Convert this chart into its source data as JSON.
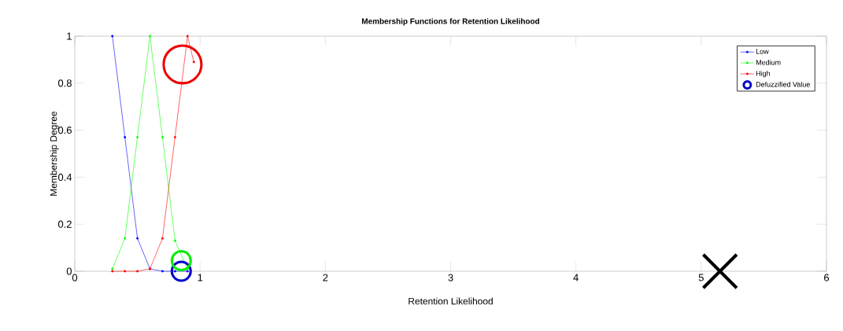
{
  "chart_data": {
    "type": "line",
    "title": "Membership Functions for Retention Likelihood",
    "xlabel": "Retention Likelihood",
    "ylabel": "Membership Degree",
    "series": [
      {
        "name": "Low",
        "color": "#0000ff",
        "marker": "circle",
        "x": [
          0.3,
          0.4,
          0.5,
          0.6,
          0.7,
          0.8,
          0.9
        ],
        "values": [
          1,
          0.57,
          0.14,
          0.01,
          0,
          0,
          0
        ]
      },
      {
        "name": "Medium",
        "color": "#00ff00",
        "marker": "circle",
        "x": [
          0.3,
          0.4,
          0.5,
          0.6,
          0.7,
          0.8,
          0.9
        ],
        "values": [
          0.01,
          0.14,
          0.57,
          1,
          0.57,
          0.13,
          0.01
        ]
      },
      {
        "name": "High",
        "color": "#ff0000",
        "marker": "circle",
        "x": [
          0.3,
          0.4,
          0.5,
          0.6,
          0.7,
          0.8,
          0.9,
          0.95
        ],
        "values": [
          0,
          0,
          0,
          0.01,
          0.14,
          0.57,
          1,
          0.89
        ]
      },
      {
        "name": "Defuzzified Value",
        "type": "scatter",
        "color": "#0000cc",
        "marker": "circle",
        "x": [
          0.85
        ],
        "values": [
          0
        ]
      },
      {
        "type": "scatter",
        "color": "#00ee00",
        "marker": "circle",
        "x": [
          0.85
        ],
        "values": [
          0.045
        ]
      },
      {
        "type": "scatter",
        "color": "#ee0000",
        "marker": "circle",
        "x": [
          0.86
        ],
        "values": [
          0.88
        ]
      },
      {
        "type": "scatter",
        "color": "#000000",
        "marker": "cross",
        "x": [
          5.15
        ],
        "values": [
          0
        ]
      }
    ],
    "xlim": [
      0,
      6
    ],
    "ylim": [
      0,
      1
    ],
    "xticks": [
      0,
      1,
      2,
      3,
      4,
      5,
      6
    ],
    "yticks": [
      0,
      0.2,
      0.4,
      0.6,
      0.8,
      1
    ],
    "legend": "top right",
    "grid": false
  }
}
